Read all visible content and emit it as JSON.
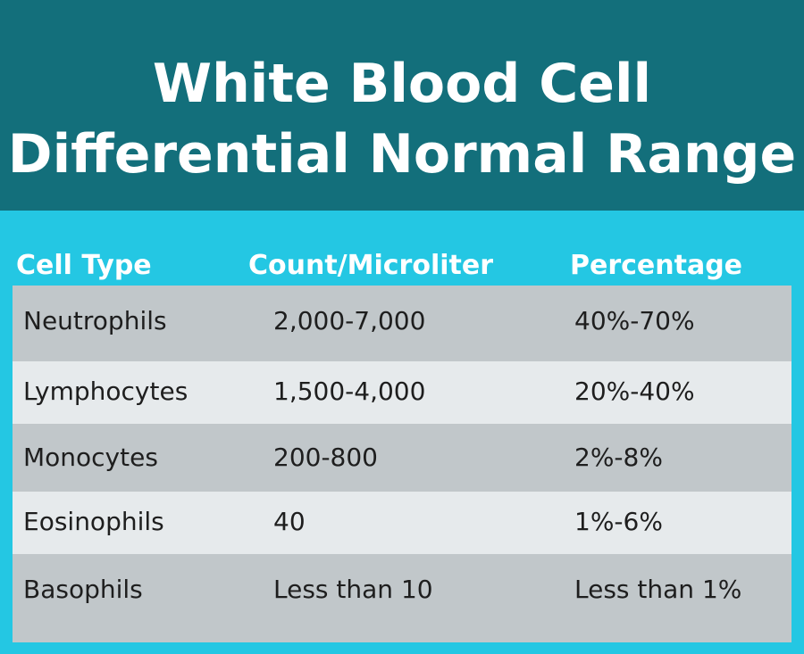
{
  "title": {
    "line1": "White Blood Cell",
    "line2": "Differential Normal Range"
  },
  "columns": {
    "cell_type": "Cell Type",
    "count": "Count/Microliter",
    "percentage": "Percentage"
  },
  "rows": [
    {
      "cell_type": "Neutrophils",
      "count": "2,000-7,000",
      "percentage": "40%-70%"
    },
    {
      "cell_type": "Lymphocytes",
      "count": "1,500-4,000",
      "percentage": "20%-40%"
    },
    {
      "cell_type": "Monocytes",
      "count": "200-800",
      "percentage": "2%-8%"
    },
    {
      "cell_type": "Eosinophils",
      "count": "40",
      "percentage": "1%-6%"
    },
    {
      "cell_type": "Basophils",
      "count": "Less than 10",
      "percentage": "Less than 1%"
    }
  ],
  "colors": {
    "header_bg": "#136f7b",
    "accent_bg": "#24c7e3",
    "row_dark": "#c1c7ca",
    "row_light": "#e6eaec",
    "text_dark": "#1e1e1e",
    "text_light": "#ffffff"
  }
}
